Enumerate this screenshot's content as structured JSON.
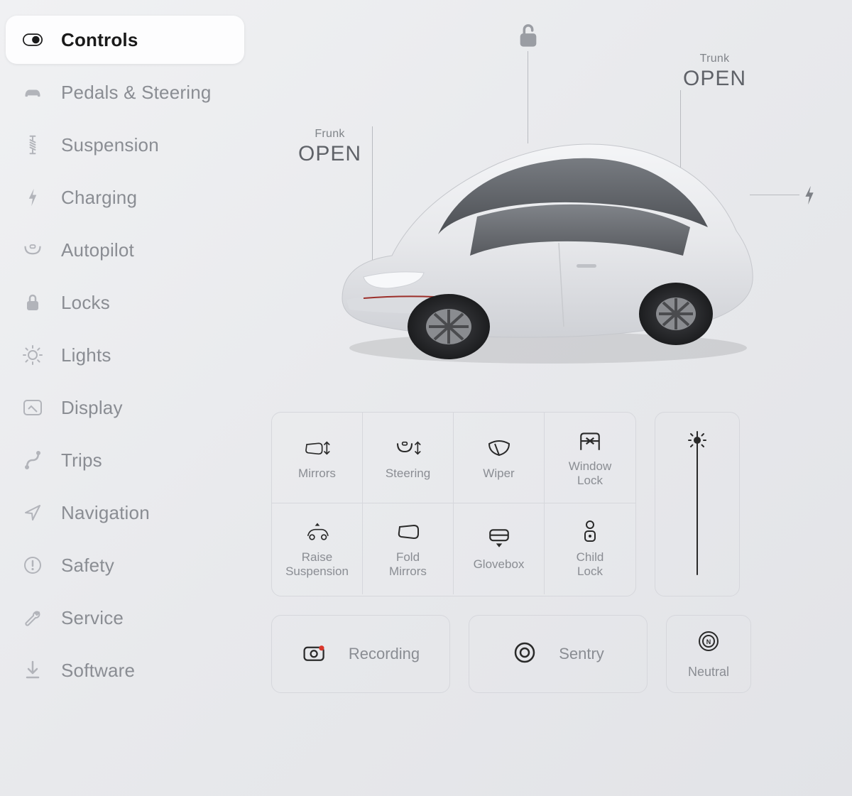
{
  "colors": {
    "bg_gradient_from": "#f0f1f3",
    "bg_gradient_to": "#e2e3e7",
    "text_active": "#1a1a1a",
    "text_muted": "#8a8d93",
    "icon_muted": "#b2b4ba",
    "border": "#d6d7dc",
    "car_body": "#e8e9eb",
    "car_shadow": "#c4c6cb",
    "car_glass": "#595d63",
    "car_wheel": "#3a3b3e",
    "recording_dot": "#d9362a"
  },
  "sidebar": {
    "active_index": 0,
    "items": [
      {
        "icon": "toggle-icon",
        "label": "Controls"
      },
      {
        "icon": "car-icon",
        "label": "Pedals & Steering"
      },
      {
        "icon": "suspension-icon",
        "label": "Suspension"
      },
      {
        "icon": "bolt-icon",
        "label": "Charging"
      },
      {
        "icon": "wheel-icon",
        "label": "Autopilot"
      },
      {
        "icon": "lock-icon",
        "label": "Locks"
      },
      {
        "icon": "bulb-icon",
        "label": "Lights"
      },
      {
        "icon": "display-icon",
        "label": "Display"
      },
      {
        "icon": "trips-icon",
        "label": "Trips"
      },
      {
        "icon": "nav-icon",
        "label": "Navigation"
      },
      {
        "icon": "safety-icon",
        "label": "Safety"
      },
      {
        "icon": "wrench-icon",
        "label": "Service"
      },
      {
        "icon": "download-icon",
        "label": "Software"
      }
    ]
  },
  "car": {
    "lock_state": "unlocked",
    "frunk": {
      "tag": "Frunk",
      "action": "OPEN"
    },
    "trunk": {
      "tag": "Trunk",
      "action": "OPEN"
    }
  },
  "quick_controls": [
    {
      "icon": "mirror-adjust-icon",
      "label": "Mirrors"
    },
    {
      "icon": "steering-adjust-icon",
      "label": "Steering"
    },
    {
      "icon": "wiper-icon",
      "label": "Wiper"
    },
    {
      "icon": "window-lock-icon",
      "label": "Window\nLock"
    },
    {
      "icon": "raise-susp-icon",
      "label": "Raise\nSuspension"
    },
    {
      "icon": "fold-mirror-icon",
      "label": "Fold\nMirrors"
    },
    {
      "icon": "glovebox-icon",
      "label": "Glovebox"
    },
    {
      "icon": "child-lock-icon",
      "label": "Child\nLock"
    }
  ],
  "brightness": {
    "value_pct": 98
  },
  "bottom": {
    "recording": {
      "label": "Recording"
    },
    "sentry": {
      "label": "Sentry"
    },
    "neutral": {
      "label": "Neutral"
    }
  }
}
